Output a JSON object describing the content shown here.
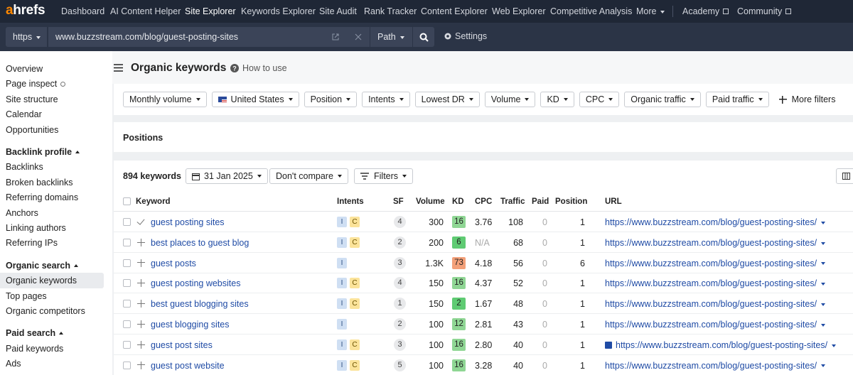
{
  "nav": {
    "logo": "ahrefs",
    "items": [
      "Dashboard",
      "AI Content Helper",
      "Site Explorer",
      "Keywords Explorer",
      "Site Audit",
      "Rank Tracker",
      "Content Explorer",
      "Web Explorer",
      "Competitive Analysis",
      "More"
    ],
    "links": [
      "Academy",
      "Community"
    ]
  },
  "toolbar": {
    "protocol": "https",
    "url": "www.buzzstream.com/blog/guest-posting-sites",
    "mode": "Path",
    "settings": "Settings"
  },
  "sidebar": {
    "items": [
      "Overview",
      "Page inspect",
      "Site structure",
      "Calendar",
      "Opportunities"
    ],
    "sections": [
      {
        "title": "Backlink profile",
        "items": [
          "Backlinks",
          "Broken backlinks",
          "Referring domains",
          "Anchors",
          "Linking authors",
          "Referring IPs"
        ]
      },
      {
        "title": "Organic search",
        "items": [
          "Organic keywords",
          "Top pages",
          "Organic competitors"
        ]
      },
      {
        "title": "Paid search",
        "items": [
          "Paid keywords",
          "Ads"
        ]
      }
    ]
  },
  "header": {
    "title": "Organic keywords",
    "help": "How to use"
  },
  "filters": [
    "Monthly volume",
    "United States",
    "Position",
    "Intents",
    "Lowest DR",
    "Volume",
    "KD",
    "CPC",
    "Organic traffic",
    "Paid traffic"
  ],
  "more_filters": "More filters",
  "positions": "Positions",
  "table": {
    "count": "894 keywords",
    "date": "31 Jan 2025",
    "compare": "Don't compare",
    "filters": "Filters",
    "columns": [
      "Keyword",
      "Intents",
      "SF",
      "Volume",
      "KD",
      "CPC",
      "Traffic",
      "Paid",
      "Position",
      "URL"
    ],
    "rows": [
      {
        "keyword": "guest posting sites",
        "intents": [
          "I",
          "C"
        ],
        "sf": "4",
        "volume": "300",
        "kd": "16",
        "cpc": "3.76",
        "traffic": "108",
        "paid": "0",
        "position": "1",
        "url": "https://www.buzzstream.com/blog/guest-posting-sites/"
      },
      {
        "keyword": "best places to guest blog",
        "intents": [
          "I",
          "C"
        ],
        "sf": "2",
        "volume": "200",
        "kd": "6",
        "cpc": "N/A",
        "traffic": "68",
        "paid": "0",
        "position": "1",
        "url": "https://www.buzzstream.com/blog/guest-posting-sites/"
      },
      {
        "keyword": "guest posts",
        "intents": [
          "I"
        ],
        "sf": "3",
        "volume": "1.3K",
        "kd": "73",
        "cpc": "4.18",
        "traffic": "56",
        "paid": "0",
        "position": "6",
        "url": "https://www.buzzstream.com/blog/guest-posting-sites/"
      },
      {
        "keyword": "guest posting websites",
        "intents": [
          "I",
          "C"
        ],
        "sf": "4",
        "volume": "150",
        "kd": "16",
        "cpc": "4.37",
        "traffic": "52",
        "paid": "0",
        "position": "1",
        "url": "https://www.buzzstream.com/blog/guest-posting-sites/"
      },
      {
        "keyword": "best guest blogging sites",
        "intents": [
          "I",
          "C"
        ],
        "sf": "1",
        "volume": "150",
        "kd": "2",
        "cpc": "1.67",
        "traffic": "48",
        "paid": "0",
        "position": "1",
        "url": "https://www.buzzstream.com/blog/guest-posting-sites/"
      },
      {
        "keyword": "guest blogging sites",
        "intents": [
          "I"
        ],
        "sf": "2",
        "volume": "100",
        "kd": "12",
        "cpc": "2.81",
        "traffic": "43",
        "paid": "0",
        "position": "1",
        "url": "https://www.buzzstream.com/blog/guest-posting-sites/"
      },
      {
        "keyword": "guest post sites",
        "intents": [
          "I",
          "C"
        ],
        "sf": "3",
        "volume": "100",
        "kd": "16",
        "cpc": "2.80",
        "traffic": "40",
        "paid": "0",
        "position": "1",
        "url": "https://www.buzzstream.com/blog/guest-posting-sites/"
      },
      {
        "keyword": "guest post website",
        "intents": [
          "I",
          "C"
        ],
        "sf": "5",
        "volume": "100",
        "kd": "16",
        "cpc": "3.28",
        "traffic": "40",
        "paid": "0",
        "position": "1",
        "url": "https://www.buzzstream.com/blog/guest-posting-sites/"
      }
    ]
  }
}
